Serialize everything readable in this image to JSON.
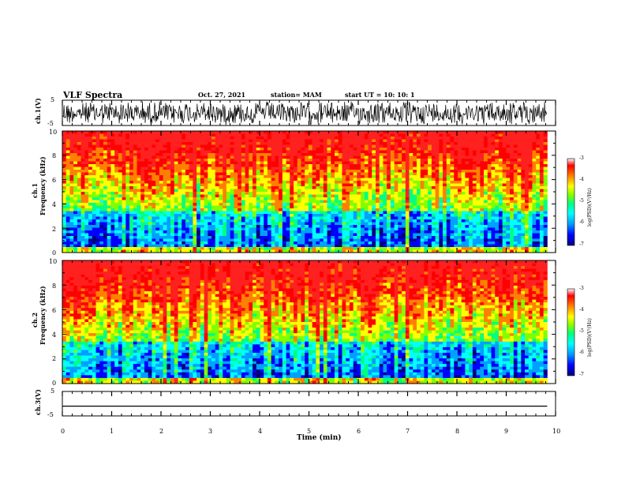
{
  "title": "VLF Spectra",
  "date": "Oct. 27, 2021",
  "station": "station= MAM",
  "start": "start  UT  =    10: 10: 1",
  "panels": {
    "ch1_wave": {
      "ylabel": "ch.1(V)",
      "ticks": [
        "5",
        "-5"
      ]
    },
    "ch1_spec": {
      "ylabel_ch": "ch.1",
      "ylabel": "Frequency  (kHz)",
      "ticks": [
        "10",
        "8",
        "6",
        "4",
        "2",
        "0"
      ]
    },
    "ch2_spec": {
      "ylabel_ch": "ch.2",
      "ylabel": "Frequency  (kHz)",
      "ticks": [
        "10",
        "8",
        "6",
        "4",
        "2",
        "0"
      ]
    },
    "ch3_wave": {
      "ylabel": "ch.3(V)",
      "ticks": [
        "5",
        "-5"
      ]
    }
  },
  "colorbar": {
    "label": "log(PSD)(V²/Hz)",
    "ticks": [
      "-3",
      "-4",
      "-5",
      "-6",
      "-7"
    ],
    "colors": [
      "#000080",
      "#0000ff",
      "#00a0ff",
      "#00ffff",
      "#00ff80",
      "#80ff00",
      "#ffff00",
      "#ff8000",
      "#ff0000",
      "#ffffff"
    ]
  },
  "xaxis": {
    "label": "Time  (min)",
    "ticks": [
      "0",
      "1",
      "2",
      "3",
      "4",
      "5",
      "6",
      "7",
      "8",
      "9",
      "10"
    ]
  },
  "chart_data": {
    "type": "heatmap",
    "title": "VLF Spectra",
    "xlabel": "Time  (min)",
    "xlim": [
      0,
      10
    ],
    "data_end_min": 9.83,
    "series": [
      {
        "name": "ch.1(V)",
        "kind": "waveform",
        "ylim": [
          -5,
          5
        ]
      },
      {
        "name": "ch.1",
        "kind": "spectrogram",
        "ylabel": "Frequency  (kHz)",
        "ylim": [
          0,
          10
        ],
        "zlabel": "log(PSD)(V²/Hz)",
        "zlim": [
          -7,
          -3
        ]
      },
      {
        "name": "ch.2",
        "kind": "spectrogram",
        "ylabel": "Frequency  (kHz)",
        "ylim": [
          0,
          10
        ],
        "zlabel": "log(PSD)(V²/Hz)",
        "zlim": [
          -7,
          -3
        ]
      },
      {
        "name": "ch.3(V)",
        "kind": "waveform",
        "ylim": [
          -5,
          5
        ],
        "value": -1
      }
    ]
  }
}
